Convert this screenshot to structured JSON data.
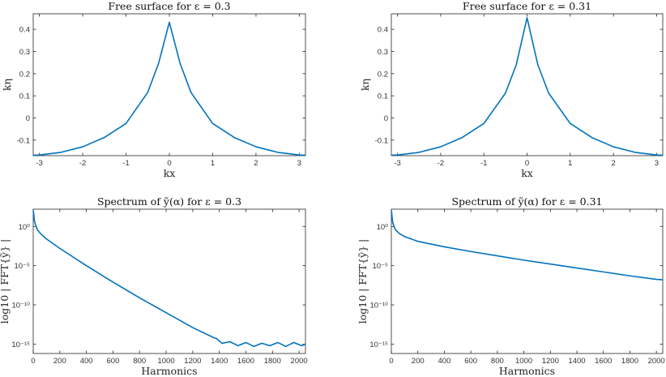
{
  "colors": {
    "line": "#0072BD",
    "axis": "#262626"
  },
  "chart_data": [
    {
      "type": "line",
      "title": "Free surface for ε = 0.3",
      "xlabel": "kx",
      "ylabel": "kη",
      "xlim": [
        -3.14159,
        3.14159
      ],
      "ylim": [
        -0.17,
        0.47
      ],
      "xticks": [
        -3,
        -2,
        -1,
        0,
        1,
        2,
        3
      ],
      "xticklabels": [
        "-3",
        "-2",
        "-1",
        "0",
        "1",
        "2",
        "3"
      ],
      "yticks": [
        -0.1,
        0,
        0.1,
        0.2,
        0.3,
        0.4
      ],
      "yticklabels": [
        "-0.1",
        "0",
        "0.1",
        "0.2",
        "0.3",
        "0.4"
      ],
      "series": [
        {
          "name": "free surface",
          "x": [
            -3.14,
            -3.0,
            -2.5,
            -2.0,
            -1.5,
            -1.0,
            -0.5,
            -0.25,
            0.0,
            0.25,
            0.5,
            1.0,
            1.5,
            2.0,
            2.5,
            3.0,
            3.14
          ],
          "values": [
            -0.168,
            -0.167,
            -0.155,
            -0.13,
            -0.088,
            -0.025,
            0.115,
            0.245,
            0.432,
            0.245,
            0.115,
            -0.025,
            -0.088,
            -0.13,
            -0.155,
            -0.167,
            -0.168
          ]
        }
      ]
    },
    {
      "type": "line",
      "title": "Free surface for ε = 0.31",
      "xlabel": "kx",
      "ylabel": "kη",
      "xlim": [
        -3.14159,
        3.14159
      ],
      "ylim": [
        -0.17,
        0.47
      ],
      "xticks": [
        -3,
        -2,
        -1,
        0,
        1,
        2,
        3
      ],
      "xticklabels": [
        "-3",
        "-2",
        "-1",
        "0",
        "1",
        "2",
        "3"
      ],
      "yticks": [
        -0.1,
        0,
        0.1,
        0.2,
        0.3,
        0.4
      ],
      "yticklabels": [
        "-0.1",
        "0",
        "0.1",
        "0.2",
        "0.3",
        "0.4"
      ],
      "series": [
        {
          "name": "free surface",
          "x": [
            -3.14,
            -3.0,
            -2.5,
            -2.0,
            -1.5,
            -1.0,
            -0.5,
            -0.25,
            0.0,
            0.25,
            0.5,
            1.0,
            1.5,
            2.0,
            2.5,
            3.0,
            3.14
          ],
          "values": [
            -0.168,
            -0.167,
            -0.155,
            -0.13,
            -0.088,
            -0.025,
            0.112,
            0.24,
            0.452,
            0.24,
            0.112,
            -0.025,
            -0.088,
            -0.13,
            -0.155,
            -0.167,
            -0.168
          ]
        }
      ]
    },
    {
      "type": "line",
      "title": "Spectrum of ỹ(α) for ε = 0.3",
      "xlabel": "Harmonics",
      "ylabel": "log10 | FFT{ỹ} |",
      "yscale": "log",
      "xlim": [
        0,
        2048
      ],
      "ylim_log10": [
        -16.2,
        2.2
      ],
      "xticks": [
        0,
        200,
        400,
        600,
        800,
        1000,
        1200,
        1400,
        1600,
        1800,
        2000
      ],
      "xticklabels": [
        "0",
        "200",
        "400",
        "600",
        "800",
        "1000",
        "1200",
        "1400",
        "1600",
        "1800",
        "2000"
      ],
      "yticks_log10": [
        0,
        -5,
        -10,
        -15
      ],
      "yticklabels": [
        "10⁰",
        "10⁻⁵",
        "10⁻¹⁰",
        "10⁻¹⁵"
      ],
      "series": [
        {
          "name": "spectrum",
          "x": [
            1,
            10,
            30,
            60,
            100,
            200,
            400,
            600,
            800,
            1000,
            1200,
            1360,
            1380,
            1420,
            1480,
            1540,
            1600,
            1660,
            1720,
            1780,
            1840,
            1900,
            1960,
            2020,
            2048
          ],
          "log10_values": [
            2.0,
            0.6,
            -0.4,
            -1.0,
            -1.6,
            -2.8,
            -5.0,
            -7.1,
            -9.1,
            -11.0,
            -12.9,
            -14.2,
            -14.3,
            -14.9,
            -14.7,
            -15.2,
            -14.8,
            -15.3,
            -14.9,
            -15.2,
            -14.8,
            -15.3,
            -14.8,
            -15.2,
            -15.0
          ]
        }
      ]
    },
    {
      "type": "line",
      "title": "Spectrum of ỹ(α) for ε = 0.31",
      "xlabel": "Harmonics",
      "ylabel": "log10 | FFT{ỹ} |",
      "yscale": "log",
      "xlim": [
        0,
        2048
      ],
      "ylim_log10": [
        -16.2,
        2.2
      ],
      "xticks": [
        0,
        200,
        400,
        600,
        800,
        1000,
        1200,
        1400,
        1600,
        1800,
        2000
      ],
      "xticklabels": [
        "0",
        "200",
        "400",
        "600",
        "800",
        "1000",
        "1200",
        "1400",
        "1600",
        "1800",
        "2000"
      ],
      "yticks_log10": [
        0,
        -5,
        -10,
        -15
      ],
      "yticklabels": [
        "10⁰",
        "10⁻⁵",
        "10⁻¹⁰",
        "10⁻¹⁵"
      ],
      "series": [
        {
          "name": "spectrum",
          "x": [
            1,
            10,
            30,
            60,
            100,
            200,
            400,
            600,
            800,
            1000,
            1200,
            1400,
            1600,
            1800,
            2000,
            2048
          ],
          "log10_values": [
            2.0,
            0.5,
            -0.4,
            -0.9,
            -1.3,
            -1.9,
            -2.6,
            -3.2,
            -3.75,
            -4.3,
            -4.8,
            -5.3,
            -5.8,
            -6.3,
            -6.75,
            -6.8
          ]
        }
      ]
    }
  ]
}
